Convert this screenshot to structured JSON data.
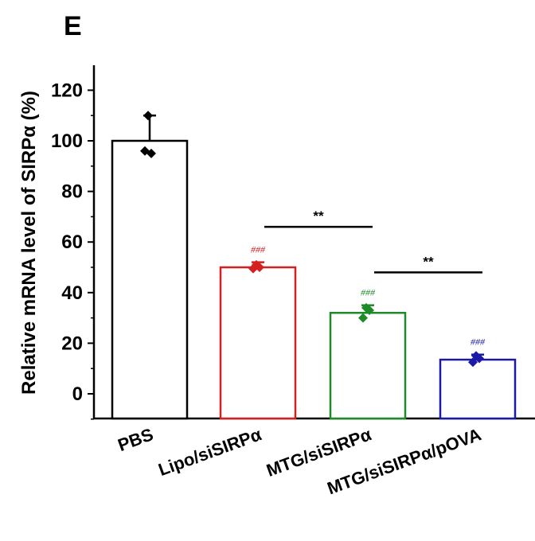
{
  "panel_label": "E",
  "chart_data": {
    "type": "bar",
    "title": "",
    "xlabel": "",
    "ylabel": "Relative mRNA level of SIRPα (%)",
    "ylim": [
      -10,
      130
    ],
    "yticks": [
      0,
      20,
      40,
      60,
      80,
      100,
      120
    ],
    "categories": [
      "PBS",
      "Lipo/siSIRPα",
      "MTG/siSIRPα",
      "MTG/siSIRPα/pOVA"
    ],
    "values": [
      100,
      50,
      32,
      13.5
    ],
    "errors": [
      10,
      2,
      3,
      2
    ],
    "points": [
      [
        110,
        96,
        95
      ],
      [
        51,
        49.5,
        50
      ],
      [
        34,
        30,
        33
      ],
      [
        15,
        12.5,
        14
      ]
    ],
    "bar_edge_colors": [
      "#000000",
      "#d42020",
      "#1f8a2a",
      "#1a1aa6"
    ],
    "annotations": [
      "",
      "###",
      "###",
      "###"
    ],
    "significance": [
      {
        "from": 1,
        "to": 2,
        "y": 66,
        "label": "**"
      },
      {
        "from": 2,
        "to": 3,
        "y": 48,
        "label": "**"
      }
    ],
    "grid": false
  }
}
